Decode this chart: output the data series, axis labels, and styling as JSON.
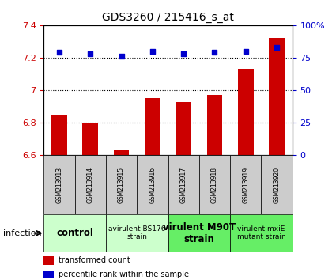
{
  "title": "GDS3260 / 215416_s_at",
  "samples": [
    "GSM213913",
    "GSM213914",
    "GSM213915",
    "GSM213916",
    "GSM213917",
    "GSM213918",
    "GSM213919",
    "GSM213920"
  ],
  "bar_values": [
    6.85,
    6.8,
    6.63,
    6.95,
    6.93,
    6.97,
    7.13,
    7.32
  ],
  "scatter_values": [
    79,
    78,
    76,
    80,
    78,
    79,
    80,
    83
  ],
  "ylim_left": [
    6.6,
    7.4
  ],
  "ylim_right": [
    0,
    100
  ],
  "yticks_left": [
    6.6,
    6.8,
    7.0,
    7.2,
    7.4
  ],
  "yticks_right": [
    0,
    25,
    50,
    75,
    100
  ],
  "ytick_labels_left": [
    "6.6",
    "6.8",
    "7",
    "7.2",
    "7.4"
  ],
  "ytick_labels_right": [
    "0",
    "25",
    "50",
    "75",
    "100%"
  ],
  "bar_color": "#cc0000",
  "scatter_color": "#0000cc",
  "hline_values": [
    6.8,
    7.0,
    7.2
  ],
  "groups": [
    {
      "label": "control",
      "start": 0,
      "end": 2,
      "color": "#ccffcc",
      "fontsize": 9,
      "bold": true
    },
    {
      "label": "avirulent BS176\nstrain",
      "start": 2,
      "end": 4,
      "color": "#ccffcc",
      "fontsize": 7,
      "bold": false
    },
    {
      "label": "virulent M90T\nstrain",
      "start": 4,
      "end": 6,
      "color": "#66ee66",
      "fontsize": 9,
      "bold": true
    },
    {
      "label": "virulent mxiE\nmutant strain",
      "start": 6,
      "end": 8,
      "color": "#66ee66",
      "fontsize": 7,
      "bold": false
    }
  ],
  "sample_box_color": "#cccccc",
  "infection_label": "infection",
  "legend_items": [
    {
      "color": "#cc0000",
      "label": "transformed count"
    },
    {
      "color": "#0000cc",
      "label": "percentile rank within the sample"
    }
  ],
  "fig_bg": "#ffffff",
  "title_fontsize": 10,
  "tick_fontsize": 8,
  "bar_width": 0.5
}
